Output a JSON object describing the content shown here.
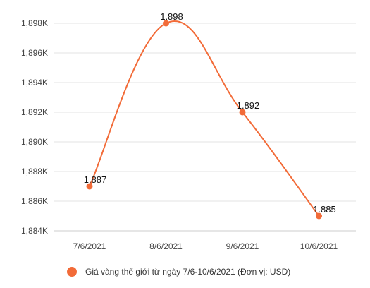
{
  "chart_data": {
    "type": "line",
    "categories": [
      "7/6/2021",
      "8/6/2021",
      "9/6/2021",
      "10/6/2021"
    ],
    "series": [
      {
        "name": "Giá vàng thế giới từ ngày 7/6-10/6/2021 (Đơn vị: USD)",
        "values": [
          1887,
          1898,
          1892,
          1885
        ],
        "labels": [
          "1.887",
          "1.898",
          "1.892",
          "1.885"
        ],
        "color": "#f26b38"
      }
    ],
    "yticks": [
      1884,
      1886,
      1888,
      1890,
      1892,
      1894,
      1896,
      1898
    ],
    "ytick_labels": [
      "1,884K",
      "1,886K",
      "1,888K",
      "1,890K",
      "1,892K",
      "1,894K",
      "1,896K",
      "1,898K"
    ],
    "ylim": [
      1884,
      1898
    ],
    "grid": true,
    "legend": "bottom",
    "smooth": true
  }
}
